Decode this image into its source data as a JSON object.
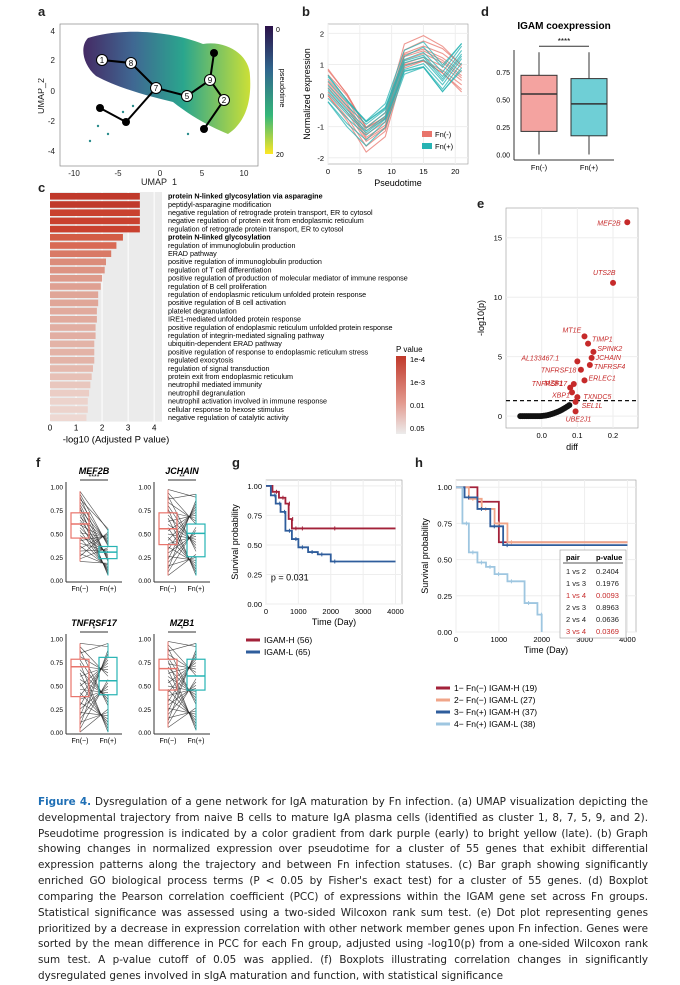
{
  "panel_labels": [
    "a",
    "b",
    "c",
    "d",
    "e",
    "f",
    "g",
    "h"
  ],
  "caption": {
    "figure_label": "Figure 4.",
    "text": "Dysregulation of a gene network for IgA maturation by Fn infection. (a) UMAP visualization depicting the developmental trajectory from naive B cells to mature IgA plasma cells (identified as cluster 1, 8, 7, 5, 9, and 2). Pseudotime progression is indicated by a color gradient from dark purple (early) to bright yellow (late). (b) Graph showing changes in normalized expression over pseudotime for a cluster of 55 genes that exhibit differential expression patterns along the trajectory and between Fn infection statuses. (c) Bar graph showing significantly enriched GO biological process terms (P < 0.05 by Fisher's exact test) for a cluster of 55 genes. (d) Boxplot comparing the Pearson correlation coefficient (PCC) of expressions within the IGAM gene set across Fn groups. Statistical significance was assessed using a two-sided Wilcoxon rank sum test. (e) Dot plot representing genes prioritized by a decrease in expression correlation with other network member genes upon Fn infection. Genes were sorted by the mean difference in PCC for each Fn group, adjusted using -log10(p) from a one-sided Wilcoxon rank sum test. A p-value cutoff of 0.05 was applied. (f) Boxplots illustrating correlation changes in significantly dysregulated genes involved in sIgA maturation and function, with statistical significance"
  },
  "panel_a": {
    "xlabel": "UMAP_1",
    "ylabel": "UMAP_2",
    "xticks": [
      "-10",
      "-5",
      "0",
      "5",
      "10"
    ],
    "yticks": [
      "4",
      "2",
      "0",
      "-2",
      "-4"
    ],
    "colorbar_label": "pseudotime",
    "colorbar_ticks": [
      "0",
      "20"
    ],
    "nodes": [
      "1",
      "8",
      "7",
      "5",
      "9",
      "2"
    ]
  },
  "panel_d": {
    "title": "IGAM coexpression",
    "ylabel": "PCC",
    "significance": "****",
    "colors": {
      "fn_neg": "#f4a3a0",
      "fn_pos": "#6fcfd6"
    }
  },
  "panel_f": {
    "significance": {
      "MEF2B": "****",
      "JCHAIN": "**",
      "TNFRSF17": "*",
      "MZB1": "*"
    }
  },
  "chart_data": [
    {
      "type": "line",
      "panel": "b",
      "xlabel": "Pseudotime",
      "ylabel": "Normalized expression",
      "xticks": [
        "0",
        "5",
        "10",
        "15",
        "20"
      ],
      "yticks": [
        "2",
        "1",
        "0",
        "-1",
        "-2"
      ],
      "xlim": [
        0,
        22
      ],
      "ylim": [
        -2.2,
        2.3
      ],
      "x": [
        0,
        3,
        6,
        9,
        12,
        15,
        18,
        21
      ],
      "series": [
        {
          "name": "Fn(-)",
          "color": "#e8746b",
          "values": [
            0.4,
            -0.3,
            -1.3,
            -0.9,
            1.2,
            1.4,
            1.1,
            0.6
          ]
        },
        {
          "name": "Fn(+)",
          "color": "#27b3b3",
          "values": [
            0.2,
            -0.5,
            -1.1,
            -0.6,
            1.0,
            1.2,
            0.5,
            1.3
          ]
        }
      ],
      "legend": "bottom-right"
    },
    {
      "type": "bar",
      "panel": "c",
      "xlabel": "-log10 (Adjusted P value)",
      "xticks": [
        "0",
        "1",
        "2",
        "3",
        "4"
      ],
      "xlim": [
        0,
        4.3
      ],
      "legend_title": "P value",
      "legend_ticks": [
        "1e-4",
        "1e-3",
        "0.01",
        "0.05"
      ],
      "bold_terms": [
        "protein N-linked glycosylation via asparagine",
        "protein N-linked glycosylation"
      ],
      "categories": [
        "protein N-linked glycosylation via asparagine",
        "peptidyl-asparagine modification",
        "negative regulation of retrograde protein transport, ER to cytosol",
        "negative regulation of protein exit from endoplasmic reticulum",
        "regulation of retrograde protein transport, ER to cytosol",
        "protein N-linked glycosylation",
        "regulation of immunoglobulin production",
        "ERAD pathway",
        "positive regulation of immunoglobulin production",
        "regulation of T cell differentiation",
        "positive regulation of production of molecular mediator of immune response",
        "regulation of B cell proliferation",
        "regulation of endoplasmic reticulum unfolded protein response",
        "positive regulation of B cell activation",
        "platelet degranulation",
        "IRE1-mediated unfolded protein response",
        "positive regulation of endoplasmic reticulum unfolded protein response",
        "regulation of integrin-mediated signaling pathway",
        "ubiquitin-dependent ERAD pathway",
        "positive regulation of response to endoplasmic reticulum stress",
        "regulated exocytosis",
        "regulation of signal transduction",
        "protein exit from endoplasmic reticulum",
        "neutrophil mediated immunity",
        "neutrophil degranulation",
        "neutrophil activation involved in immune response",
        "cellular response to hexose stimulus",
        "negative regulation of catalytic activity"
      ],
      "values": [
        3.45,
        3.45,
        3.45,
        3.45,
        3.45,
        2.8,
        2.55,
        2.35,
        2.15,
        2.1,
        2.0,
        1.95,
        1.85,
        1.85,
        1.8,
        1.8,
        1.75,
        1.75,
        1.7,
        1.7,
        1.7,
        1.65,
        1.6,
        1.55,
        1.5,
        1.45,
        1.45,
        1.4
      ],
      "colors": [
        "#c0392b",
        "#c0392b",
        "#c9412f",
        "#c9412f",
        "#c9412f",
        "#d35c45",
        "#d96a55",
        "#d97a66",
        "#db8c7a",
        "#dd9383",
        "#de9a8b",
        "#dfa092",
        "#e0a698",
        "#e0a698",
        "#e1aa9d",
        "#e1aa9d",
        "#e2aea2",
        "#e2aea2",
        "#e3b3a7",
        "#e3b3a7",
        "#e3b3a7",
        "#e5b9ae",
        "#e7c0b6",
        "#e9c7be",
        "#ebcdc5",
        "#ecd3cc",
        "#ecd3cc",
        "#eed8d2"
      ]
    },
    {
      "type": "box",
      "panel": "d",
      "categories": [
        "Fn(-)",
        "Fn(+)"
      ],
      "yticks": [
        "0.75",
        "0.50",
        "0.25",
        "0.00"
      ],
      "ylim": [
        -0.05,
        0.95
      ],
      "stats": [
        {
          "min": 0.0,
          "q1": 0.21,
          "median": 0.55,
          "q3": 0.72,
          "max": 0.93
        },
        {
          "min": 0.0,
          "q1": 0.17,
          "median": 0.46,
          "q3": 0.69,
          "max": 0.93
        }
      ]
    },
    {
      "type": "scatter",
      "panel": "e",
      "xlabel": "diff",
      "ylabel": "-log10(p)",
      "xticks": [
        "0.0",
        "0.1",
        "0.2"
      ],
      "yticks": [
        "15",
        "10",
        "5",
        "0"
      ],
      "xlim": [
        -0.1,
        0.27
      ],
      "ylim": [
        -1,
        17.5
      ],
      "cutoff": 1.3,
      "points": [
        {
          "label": "MEF2B",
          "x": 0.24,
          "y": 16.3
        },
        {
          "label": "UTS2B",
          "x": 0.2,
          "y": 11.2
        },
        {
          "label": "MT1E",
          "x": 0.12,
          "y": 6.7
        },
        {
          "label": "TIMP1",
          "x": 0.13,
          "y": 6.1
        },
        {
          "label": "SPINK2",
          "x": 0.145,
          "y": 5.4
        },
        {
          "label": "JCHAIN",
          "x": 0.14,
          "y": 4.9
        },
        {
          "label": "AL133467.1",
          "x": 0.1,
          "y": 4.6
        },
        {
          "label": "TNFRSF4",
          "x": 0.135,
          "y": 4.3
        },
        {
          "label": "TNFRSF18",
          "x": 0.11,
          "y": 3.9
        },
        {
          "label": "ERLEC1",
          "x": 0.12,
          "y": 3.0
        },
        {
          "label": "TNFRSF17",
          "x": 0.09,
          "y": 2.7
        },
        {
          "label": "MZB1",
          "x": 0.08,
          "y": 2.4
        },
        {
          "label": "XBP1",
          "x": 0.085,
          "y": 2.0
        },
        {
          "label": "TXNDC5",
          "x": 0.1,
          "y": 1.6
        },
        {
          "label": "SEL1L",
          "x": 0.095,
          "y": 1.2
        },
        {
          "label": "UBE2J1",
          "x": 0.095,
          "y": 0.4
        }
      ]
    },
    {
      "type": "box",
      "panel": "f",
      "yticks": [
        "1.00",
        "0.75",
        "0.50",
        "0.25",
        "0.00"
      ],
      "ylim": [
        -0.02,
        1.05
      ],
      "categories": [
        "Fn(−)",
        "Fn(+)"
      ],
      "genes": [
        {
          "gene": "MEF2B",
          "stats": [
            {
              "q1": 0.45,
              "median": 0.6,
              "q3": 0.72,
              "min": 0.2,
              "max": 0.95
            },
            {
              "q1": 0.23,
              "median": 0.3,
              "q3": 0.36,
              "min": 0.05,
              "max": 0.55
            }
          ]
        },
        {
          "gene": "JCHAIN",
          "stats": [
            {
              "q1": 0.38,
              "median": 0.55,
              "q3": 0.72,
              "min": 0.05,
              "max": 0.97
            },
            {
              "q1": 0.25,
              "median": 0.5,
              "q3": 0.6,
              "min": 0.05,
              "max": 0.92
            }
          ]
        },
        {
          "gene": "TNFRSF17",
          "stats": [
            {
              "q1": 0.38,
              "median": 0.7,
              "q3": 0.78,
              "min": 0.0,
              "max": 0.95
            },
            {
              "q1": 0.4,
              "median": 0.55,
              "q3": 0.8,
              "min": 0.0,
              "max": 0.95
            }
          ]
        },
        {
          "gene": "MZB1",
          "stats": [
            {
              "q1": 0.45,
              "median": 0.68,
              "q3": 0.78,
              "min": 0.05,
              "max": 0.97
            },
            {
              "q1": 0.45,
              "median": 0.6,
              "q3": 0.78,
              "min": 0.02,
              "max": 0.95
            }
          ]
        }
      ]
    },
    {
      "type": "line",
      "panel": "g",
      "xlabel": "Time (Day)",
      "ylabel": "Survival probability",
      "xticks": [
        "0",
        "1000",
        "2000",
        "3000",
        "4000"
      ],
      "yticks": [
        "1.00",
        "0.75",
        "0.50",
        "0.25",
        "0.00"
      ],
      "xlim": [
        0,
        4200
      ],
      "ylim": [
        0,
        1.05
      ],
      "annotation": "p = 0.031",
      "series": [
        {
          "name": "IGAM-H (56)",
          "color": "#a3223a",
          "x": [
            0,
            200,
            400,
            600,
            700,
            800,
            1000,
            2000,
            4000
          ],
          "values": [
            1.0,
            0.95,
            0.9,
            0.85,
            0.72,
            0.64,
            0.64,
            0.64,
            0.64
          ]
        },
        {
          "name": "IGAM-L (65)",
          "color": "#2f5d9c",
          "x": [
            0,
            150,
            300,
            450,
            600,
            800,
            1000,
            1300,
            1600,
            2000,
            4000
          ],
          "values": [
            1.0,
            0.92,
            0.85,
            0.78,
            0.62,
            0.55,
            0.48,
            0.44,
            0.42,
            0.36,
            0.36
          ]
        }
      ]
    },
    {
      "type": "line",
      "panel": "h",
      "xlabel": "Time (Day)",
      "ylabel": "Survival probability",
      "xticks": [
        "0",
        "1000",
        "2000",
        "3000",
        "4000"
      ],
      "yticks": [
        "1.00",
        "0.75",
        "0.50",
        "0.25",
        "0.00"
      ],
      "xlim": [
        0,
        4200
      ],
      "ylim": [
        0,
        1.05
      ],
      "series": [
        {
          "name": "1− Fn(−) IGAM-H (19)",
          "color": "#a3223a",
          "x": [
            0,
            500,
            1000,
            4000
          ],
          "values": [
            1.0,
            0.9,
            0.62,
            0.62
          ]
        },
        {
          "name": "2− Fn(−) IGAM-L (27)",
          "color": "#f0a589",
          "x": [
            0,
            300,
            600,
            900,
            1200,
            4000
          ],
          "values": [
            1.0,
            0.92,
            0.85,
            0.75,
            0.62,
            0.62
          ]
        },
        {
          "name": "3− Fn(+) IGAM-H (37)",
          "color": "#2f5d9c",
          "x": [
            0,
            200,
            500,
            800,
            1100,
            4000
          ],
          "values": [
            1.0,
            0.93,
            0.85,
            0.73,
            0.6,
            0.6
          ]
        },
        {
          "name": "4− Fn(+) IGAM-L (38)",
          "color": "#9ec6e0",
          "x": [
            0,
            150,
            300,
            500,
            700,
            900,
            1200,
            1600,
            1900,
            2000
          ],
          "values": [
            1.0,
            0.75,
            0.55,
            0.48,
            0.45,
            0.4,
            0.35,
            0.2,
            0.12,
            0.0
          ]
        }
      ],
      "table": {
        "headers": [
          "pair",
          "p-value"
        ],
        "rows": [
          [
            "1 vs 2",
            "0.2404"
          ],
          [
            "1 vs 3",
            "0.1976"
          ],
          [
            "1 vs 4",
            "0.0093"
          ],
          [
            "2 vs 3",
            "0.8963"
          ],
          [
            "2 vs 4",
            "0.0636"
          ],
          [
            "3 vs 4",
            "0.0369"
          ]
        ],
        "highlight_rows": [
          2,
          5
        ]
      }
    }
  ]
}
